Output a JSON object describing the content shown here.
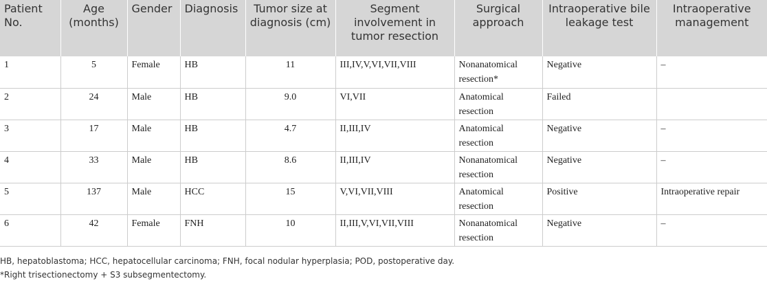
{
  "table": {
    "headers": [
      "Patient No.",
      "Age (months)",
      "Gender",
      "Diagnosis",
      "Tumor size at diagnosis (cm)",
      "Segment involvement in tumor resection",
      "Surgical approach",
      "Intraoperative bile leakage test",
      "Intraoperative management"
    ],
    "rows": [
      [
        "1",
        "5",
        "Female",
        "HB",
        "11",
        "III,IV,V,VI,VII,VIII",
        "Nonanatomical resection*",
        "Negative",
        "–"
      ],
      [
        "2",
        "24",
        "Male",
        "HB",
        "9.0",
        "VI,VII",
        "Anatomical resection",
        "Failed",
        null
      ],
      [
        "3",
        "17",
        "Male",
        "HB",
        "4.7",
        "II,III,IV",
        "Anatomical resection",
        "Negative",
        "–"
      ],
      [
        "4",
        "33",
        "Male",
        "HB",
        "8.6",
        "II,III,IV",
        "Nonanatomical resection",
        "Negative",
        "–"
      ],
      [
        "5",
        "137",
        "Male",
        "HCC",
        "15",
        "V,VI,VII,VIII",
        "Anatomical resection",
        "Positive",
        "Intraoperative repair"
      ],
      [
        "6",
        "42",
        "Female",
        "FNH",
        "10",
        "II,III,V,VI,VII,VIII",
        "Nonanatomical resection",
        "Negative",
        "–"
      ]
    ]
  },
  "footnotes": [
    "HB, hepatoblastoma; HCC, hepatocellular carcinoma; FNH, focal nodular hyperplasia; POD, postoperative day.",
    "*Right trisectionectomy + S3 subsegmentectomy."
  ]
}
